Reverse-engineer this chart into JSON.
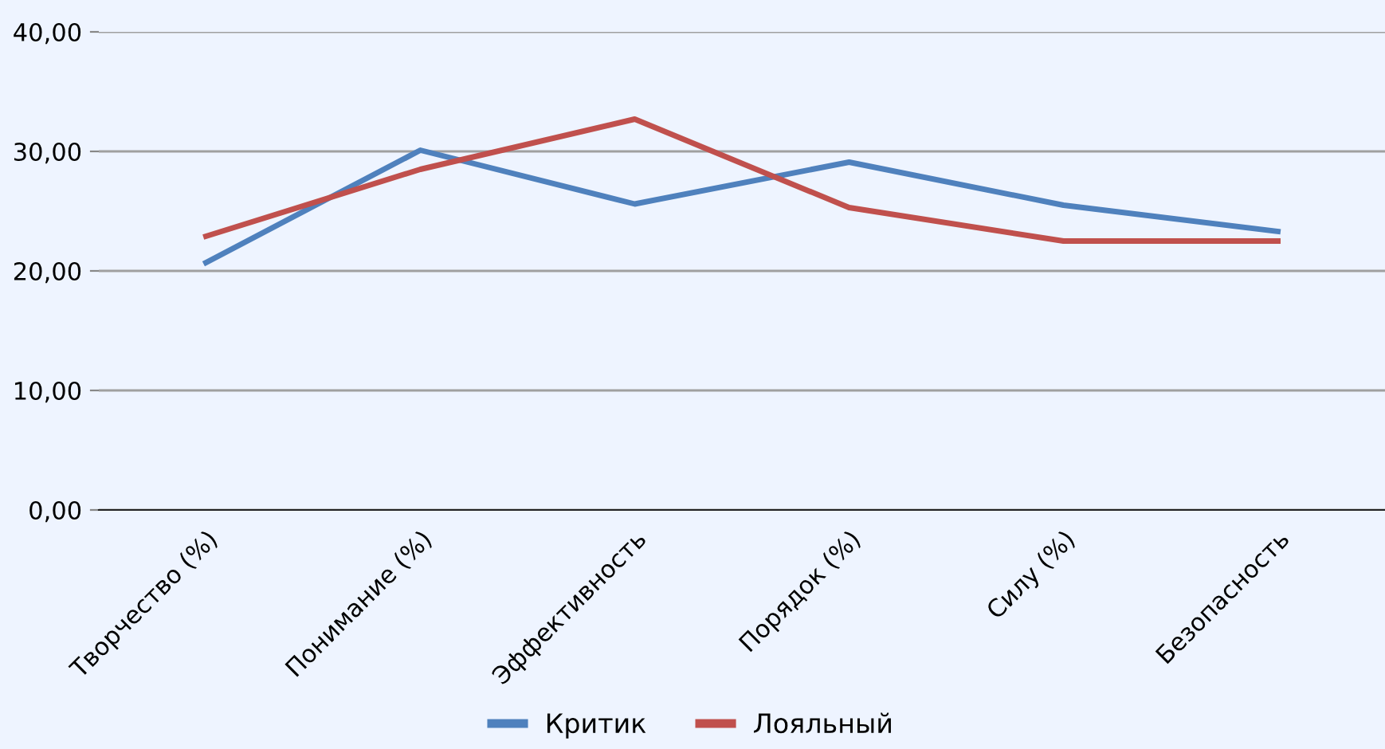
{
  "chart_data": {
    "type": "line",
    "categories": [
      "Творчество (%)",
      "Понимание (%)",
      "Эффективность",
      "Порядок (%)",
      "Силу (%)",
      "Безопасность"
    ],
    "series": [
      {
        "name": "Критик",
        "color": "#4f81bd",
        "values": [
          20.7,
          30.1,
          25.6,
          29.1,
          25.5,
          23.3
        ]
      },
      {
        "name": "Лояльный",
        "color": "#c0504d",
        "values": [
          22.9,
          28.5,
          32.7,
          25.3,
          22.5,
          22.5
        ]
      }
    ],
    "ylim": [
      0,
      40
    ],
    "yticks": [
      {
        "value": 0,
        "label": "0,00"
      },
      {
        "value": 10,
        "label": "10,00"
      },
      {
        "value": 20,
        "label": "20,00"
      },
      {
        "value": 30,
        "label": "30,00"
      },
      {
        "value": 40,
        "label": "40,00"
      }
    ],
    "grid": "y",
    "legend": "bottom",
    "marker": "none",
    "line_style": "solid"
  }
}
